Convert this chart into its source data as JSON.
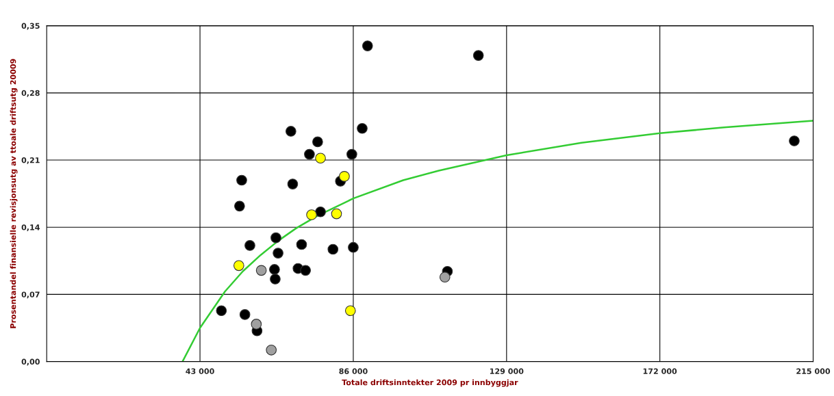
{
  "chart_data": {
    "type": "scatter",
    "xlabel": "Totale driftsinntekter 2009 pr innbyggjar",
    "ylabel": "Prosentandel finansielle revisjonsutg av ttoale driftsutg 20009",
    "xlim": [
      0,
      215000
    ],
    "xticks": [
      {
        "value": 43000,
        "label": "43 000"
      },
      {
        "value": 86000,
        "label": "86 000"
      },
      {
        "value": 129000,
        "label": "129 000"
      },
      {
        "value": 172000,
        "label": "172 000"
      },
      {
        "value": 215000,
        "label": "215 000"
      }
    ],
    "ylim": [
      0,
      0.35
    ],
    "yticks": [
      {
        "value": 0,
        "label": "0,00"
      },
      {
        "value": 0.07,
        "label": "0,07"
      },
      {
        "value": 0.14,
        "label": "0,14"
      },
      {
        "value": 0.21,
        "label": "0,21"
      },
      {
        "value": 0.28,
        "label": "0,28"
      },
      {
        "value": 0.35,
        "label": "0,35"
      }
    ],
    "grid": true,
    "marker": "circle",
    "series": [
      {
        "color": "#000000",
        "x": [
          49000,
          54700,
          54100,
          55600,
          57000,
          59000,
          64300,
          64900,
          63900,
          64100,
          68500,
          69000,
          71500,
          70500,
          72600,
          73700,
          76000,
          76800,
          80300,
          82400,
          85600,
          86000,
          88500,
          90000,
          112400,
          121100,
          209700
        ],
        "values": [
          0.053,
          0.189,
          0.162,
          0.049,
          0.121,
          0.032,
          0.129,
          0.113,
          0.096,
          0.086,
          0.24,
          0.185,
          0.122,
          0.097,
          0.095,
          0.216,
          0.229,
          0.156,
          0.117,
          0.188,
          0.216,
          0.119,
          0.243,
          0.329,
          0.094,
          0.319,
          0.23
        ]
      },
      {
        "color": "#ffff00",
        "x": [
          53900,
          76800,
          74300,
          81300,
          83500,
          85200
        ],
        "values": [
          0.1,
          0.212,
          0.153,
          0.154,
          0.193,
          0.053
        ]
      },
      {
        "color": "#a0a0a0",
        "x": [
          60200,
          58800,
          63000,
          111700
        ],
        "values": [
          0.095,
          0.039,
          0.012,
          0.088
        ]
      },
      {
        "type": "line",
        "marker": "none",
        "color": "#33cc33",
        "x": [
          38100,
          43000,
          50000,
          55000,
          60000,
          65000,
          70000,
          76000,
          86000,
          100000,
          110000,
          129000,
          150000,
          172000,
          190000,
          215000
        ],
        "values": [
          0.0,
          0.035,
          0.073,
          0.094,
          0.111,
          0.126,
          0.139,
          0.152,
          0.17,
          0.189,
          0.199,
          0.215,
          0.228,
          0.238,
          0.244,
          0.251
        ]
      }
    ]
  }
}
